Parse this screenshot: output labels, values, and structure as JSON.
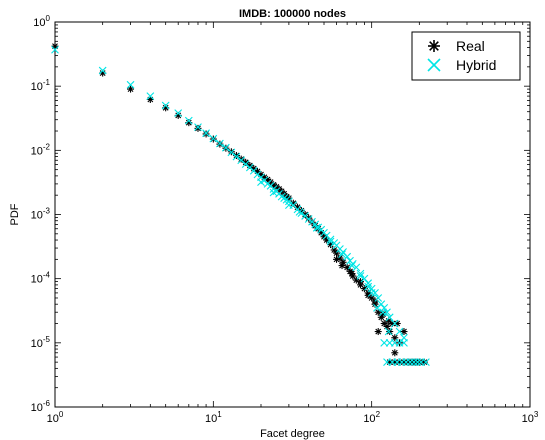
{
  "chart_data": {
    "type": "scatter",
    "title": "IMDB: 100000 nodes",
    "xlabel": "Facet degree",
    "ylabel": "PDF",
    "xscale": "log",
    "yscale": "log",
    "xlim": [
      1,
      1000
    ],
    "ylim": [
      1e-06,
      1
    ],
    "x_ticks": [
      {
        "value": 1,
        "base": "10",
        "exp": "0"
      },
      {
        "value": 10,
        "base": "10",
        "exp": "1"
      },
      {
        "value": 100,
        "base": "10",
        "exp": "2"
      },
      {
        "value": 1000,
        "base": "10",
        "exp": "3"
      }
    ],
    "y_ticks": [
      {
        "value": 1,
        "base": "10",
        "exp": "0"
      },
      {
        "value": 0.1,
        "base": "10",
        "exp": "-1"
      },
      {
        "value": 0.01,
        "base": "10",
        "exp": "-2"
      },
      {
        "value": 0.001,
        "base": "10",
        "exp": "-3"
      },
      {
        "value": 0.0001,
        "base": "10",
        "exp": "-4"
      },
      {
        "value": 1e-05,
        "base": "10",
        "exp": "-5"
      },
      {
        "value": 1e-06,
        "base": "10",
        "exp": "-6"
      }
    ],
    "grid": false,
    "legend_position": "top-right",
    "series": [
      {
        "name": "Real",
        "marker": "asterisk",
        "color": "#000000",
        "points": [
          [
            1,
            0.42
          ],
          [
            2,
            0.16
          ],
          [
            3,
            0.09
          ],
          [
            4,
            0.062
          ],
          [
            5,
            0.046
          ],
          [
            6,
            0.035
          ],
          [
            7,
            0.027
          ],
          [
            8,
            0.022
          ],
          [
            9,
            0.018
          ],
          [
            10,
            0.015
          ],
          [
            11,
            0.0125
          ],
          [
            12,
            0.0108
          ],
          [
            13,
            0.0095
          ],
          [
            14,
            0.0083
          ],
          [
            15,
            0.0073
          ],
          [
            16,
            0.0065
          ],
          [
            17,
            0.0058
          ],
          [
            18,
            0.0052
          ],
          [
            19,
            0.0047
          ],
          [
            20,
            0.0042
          ],
          [
            21,
            0.0038
          ],
          [
            22,
            0.0035
          ],
          [
            23,
            0.0032
          ],
          [
            24,
            0.0029
          ],
          [
            25,
            0.0027
          ],
          [
            26,
            0.0025
          ],
          [
            27,
            0.0023
          ],
          [
            28,
            0.0021
          ],
          [
            29,
            0.0019
          ],
          [
            30,
            0.0018
          ],
          [
            32,
            0.0015
          ],
          [
            34,
            0.0013
          ],
          [
            36,
            0.00115
          ],
          [
            38,
            0.001
          ],
          [
            40,
            0.00088
          ],
          [
            42,
            0.00076
          ],
          [
            44,
            0.00067
          ],
          [
            46,
            0.0006
          ],
          [
            48,
            0.00052
          ],
          [
            50,
            0.00045
          ],
          [
            52,
            0.0004
          ],
          [
            55,
            0.00034
          ],
          [
            58,
            0.00028
          ],
          [
            60,
            0.00025
          ],
          [
            63,
            0.00021
          ],
          [
            66,
            0.00018
          ],
          [
            70,
            0.00015
          ],
          [
            73,
            0.00013
          ],
          [
            76,
            0.00011
          ],
          [
            80,
            9.5e-05
          ],
          [
            85,
            8e-05
          ],
          [
            90,
            7e-05
          ],
          [
            95,
            6e-05
          ],
          [
            100,
            5e-05
          ],
          [
            105,
            4e-05
          ],
          [
            110,
            3e-05
          ],
          [
            115,
            2.5e-05
          ],
          [
            120,
            2e-05
          ],
          [
            125,
            1.8e-05
          ],
          [
            130,
            1.5e-05
          ],
          [
            140,
            1.2e-05
          ],
          [
            150,
            1e-05
          ],
          [
            110,
            1.5e-05
          ],
          [
            118,
            2.8e-05
          ],
          [
            128,
            2.2e-05
          ],
          [
            135,
            2e-05
          ],
          [
            145,
            2e-05
          ],
          [
            160,
            1.5e-05
          ],
          [
            130,
            5e-06
          ],
          [
            140,
            5e-06
          ],
          [
            150,
            5e-06
          ],
          [
            160,
            5e-06
          ],
          [
            170,
            5e-06
          ],
          [
            180,
            5e-06
          ],
          [
            190,
            5e-06
          ],
          [
            200,
            5e-06
          ],
          [
            215,
            5e-06
          ],
          [
            60,
            0.0002
          ],
          [
            65,
            0.00016
          ],
          [
            75,
            0.00012
          ],
          [
            85,
            9e-05
          ],
          [
            95,
            5.5e-05
          ],
          [
            105,
            4.5e-05
          ],
          [
            140,
            7e-06
          ]
        ]
      },
      {
        "name": "Hybrid",
        "marker": "x",
        "color": "#00e5e5",
        "points": [
          [
            1,
            0.37
          ],
          [
            2,
            0.175
          ],
          [
            3,
            0.105
          ],
          [
            4,
            0.07
          ],
          [
            5,
            0.05
          ],
          [
            6,
            0.038
          ],
          [
            7,
            0.029
          ],
          [
            8,
            0.023
          ],
          [
            9,
            0.0185
          ],
          [
            10,
            0.0152
          ],
          [
            11,
            0.0128
          ],
          [
            12,
            0.011
          ],
          [
            13,
            0.0093
          ],
          [
            14,
            0.008
          ],
          [
            15,
            0.007
          ],
          [
            16,
            0.0061
          ],
          [
            17,
            0.0054
          ],
          [
            18,
            0.0048
          ],
          [
            19,
            0.0042
          ],
          [
            20,
            0.0038
          ],
          [
            21,
            0.0034
          ],
          [
            22,
            0.003
          ],
          [
            23,
            0.0028
          ],
          [
            24,
            0.0025
          ],
          [
            25,
            0.0023
          ],
          [
            26,
            0.0021
          ],
          [
            27,
            0.0019
          ],
          [
            28,
            0.0018
          ],
          [
            29,
            0.0017
          ],
          [
            30,
            0.0016
          ],
          [
            32,
            0.0014
          ],
          [
            34,
            0.0012
          ],
          [
            36,
            0.00105
          ],
          [
            38,
            0.00095
          ],
          [
            40,
            0.00085
          ],
          [
            42,
            0.00077
          ],
          [
            44,
            0.0007
          ],
          [
            46,
            0.00063
          ],
          [
            48,
            0.00058
          ],
          [
            50,
            0.00052
          ],
          [
            52,
            0.00047
          ],
          [
            55,
            0.00041
          ],
          [
            58,
            0.00036
          ],
          [
            60,
            0.00033
          ],
          [
            63,
            0.00029
          ],
          [
            66,
            0.00026
          ],
          [
            70,
            0.00022
          ],
          [
            73,
            0.00019
          ],
          [
            76,
            0.00017
          ],
          [
            80,
            0.00015
          ],
          [
            85,
            0.00012
          ],
          [
            90,
            0.0001
          ],
          [
            95,
            8.5e-05
          ],
          [
            100,
            7e-05
          ],
          [
            105,
            6e-05
          ],
          [
            110,
            5e-05
          ],
          [
            115,
            4e-05
          ],
          [
            120,
            3.5e-05
          ],
          [
            125,
            3e-05
          ],
          [
            130,
            2.5e-05
          ],
          [
            140,
            2e-05
          ],
          [
            150,
            1.5e-05
          ],
          [
            160,
            1.2e-05
          ],
          [
            108,
            3.5e-05
          ],
          [
            118,
            3e-05
          ],
          [
            128,
            1.5e-05
          ],
          [
            120,
            1e-05
          ],
          [
            130,
            1e-05
          ],
          [
            140,
            1e-05
          ],
          [
            150,
            1e-05
          ],
          [
            160,
            1e-05
          ],
          [
            125,
            5e-06
          ],
          [
            135,
            5e-06
          ],
          [
            145,
            5e-06
          ],
          [
            155,
            5e-06
          ],
          [
            165,
            5e-06
          ],
          [
            175,
            5e-06
          ],
          [
            185,
            5e-06
          ],
          [
            195,
            5e-06
          ],
          [
            205,
            5e-06
          ],
          [
            220,
            5e-06
          ],
          [
            20,
            0.0032
          ],
          [
            24,
            0.0022
          ],
          [
            30,
            0.0014
          ],
          [
            35,
            0.0011
          ],
          [
            45,
            0.00062
          ],
          [
            55,
            0.00038
          ],
          [
            65,
            0.00024
          ],
          [
            75,
            0.00016
          ],
          [
            85,
            0.00011
          ],
          [
            95,
            7.5e-05
          ],
          [
            100,
            6e-05
          ]
        ]
      }
    ]
  }
}
